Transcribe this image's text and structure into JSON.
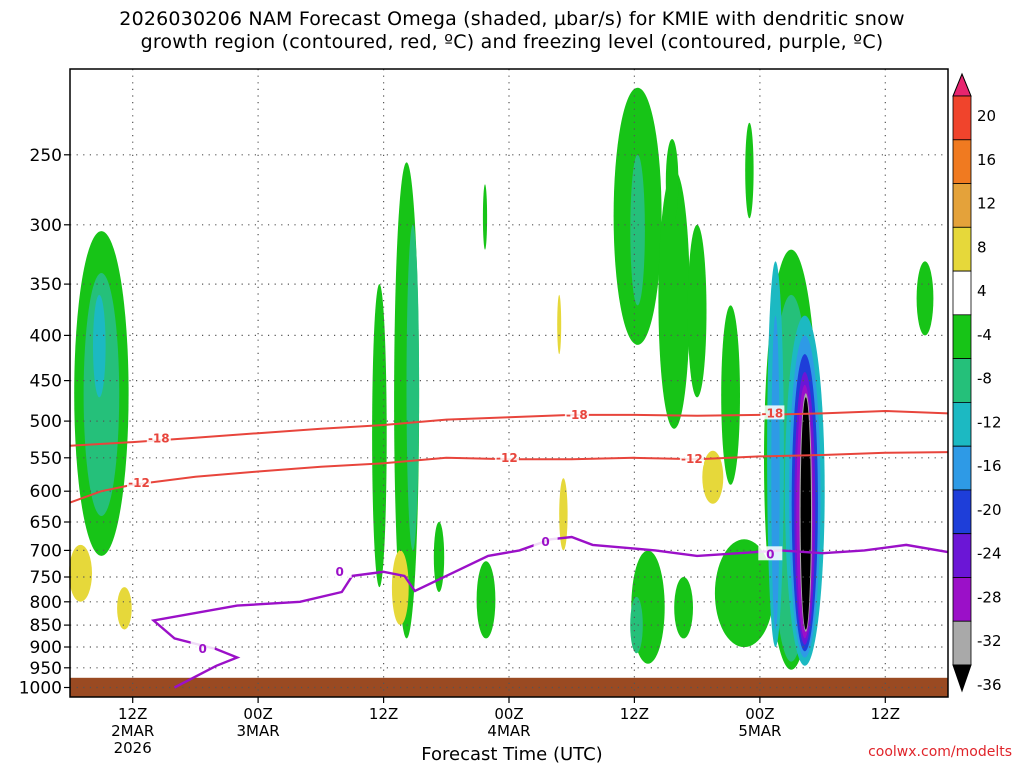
{
  "header": {
    "title_line1": "2026030206 NAM Forecast Omega (shaded, µbar/s) for KMIE with dendritic snow",
    "title_line2": "growth region (contoured, red, ºC) and freezing level (contoured, purple, ºC)"
  },
  "footer": {
    "credit": "coolwx.com/modelts"
  },
  "colors": {
    "axis": "#000000",
    "grid": "#555555",
    "dgz_contour": "#e8453c",
    "freezing_contour": "#9b10c8",
    "terrain": "#9a4a22"
  },
  "chart_data": {
    "type": "heatmap",
    "title": "2026030206 NAM Forecast Omega (shaded, µbar/s) for KMIE with dendritic snow growth region (contoured, red, ºC) and freezing level (contoured, purple, ºC)",
    "xlabel": "Forecast Time (UTC)",
    "ylabel": "",
    "y_scale": "log-pressure (inverted)",
    "yticks": [
      250,
      300,
      350,
      400,
      450,
      500,
      550,
      600,
      650,
      700,
      750,
      800,
      850,
      900,
      950,
      1000
    ],
    "ylim": [
      1025,
      200
    ],
    "x_range_hours": [
      0,
      84
    ],
    "x_ticks": [
      {
        "hour": 6,
        "lines": [
          "12Z",
          "2MAR",
          "2026"
        ]
      },
      {
        "hour": 18,
        "lines": [
          "00Z",
          "3MAR"
        ]
      },
      {
        "hour": 30,
        "lines": [
          "12Z"
        ]
      },
      {
        "hour": 42,
        "lines": [
          "00Z",
          "4MAR"
        ]
      },
      {
        "hour": 54,
        "lines": [
          "12Z"
        ]
      },
      {
        "hour": 66,
        "lines": [
          "00Z",
          "5MAR"
        ]
      },
      {
        "hour": 78,
        "lines": [
          "12Z"
        ]
      }
    ],
    "grid": true,
    "colorbar": {
      "labels": [
        20,
        16,
        12,
        8,
        4,
        -4,
        -8,
        -12,
        -16,
        -20,
        -24,
        -28,
        -32,
        -36
      ],
      "colors": [
        "#e8256f",
        "#f0442c",
        "#f07a20",
        "#e4a23a",
        "#e6d83a",
        "#ffffff",
        "#17c417",
        "#25c07a",
        "#1cb9c2",
        "#2e9ae6",
        "#1e3ed9",
        "#6b16d6",
        "#9b10c8",
        "#a9a9a9",
        "#000000"
      ]
    },
    "contour_labels": {
      "dgz": [
        "-18",
        "-12"
      ],
      "freezing": [
        "0"
      ]
    },
    "series": [
      {
        "name": "-18",
        "kind": "dgz",
        "points": [
          [
            0,
            533
          ],
          [
            6,
            528
          ],
          [
            12,
            522
          ],
          [
            18,
            516
          ],
          [
            24,
            510
          ],
          [
            30,
            505
          ],
          [
            36,
            498
          ],
          [
            42,
            495
          ],
          [
            48,
            492
          ],
          [
            54,
            492
          ],
          [
            60,
            493
          ],
          [
            66,
            492
          ],
          [
            72,
            490
          ],
          [
            78,
            487
          ],
          [
            84,
            490
          ]
        ]
      },
      {
        "name": "-12",
        "kind": "dgz",
        "points": [
          [
            0,
            618
          ],
          [
            3,
            600
          ],
          [
            6,
            590
          ],
          [
            12,
            578
          ],
          [
            18,
            570
          ],
          [
            24,
            563
          ],
          [
            30,
            558
          ],
          [
            36,
            550
          ],
          [
            42,
            552
          ],
          [
            48,
            552
          ],
          [
            54,
            550
          ],
          [
            60,
            552
          ],
          [
            66,
            548
          ],
          [
            72,
            546
          ],
          [
            78,
            543
          ],
          [
            84,
            542
          ]
        ]
      },
      {
        "name": "0",
        "kind": "freezing",
        "points": [
          [
            10,
            1000
          ],
          [
            14,
            945
          ],
          [
            16,
            925
          ],
          [
            14,
            905
          ],
          [
            10,
            880
          ],
          [
            8,
            840
          ],
          [
            16,
            808
          ],
          [
            22,
            800
          ],
          [
            26,
            780
          ],
          [
            27,
            748
          ],
          [
            30,
            740
          ],
          [
            32,
            748
          ],
          [
            33,
            778
          ],
          [
            36,
            748
          ],
          [
            40,
            710
          ],
          [
            43,
            700
          ],
          [
            46,
            680
          ],
          [
            48,
            676
          ],
          [
            50,
            690
          ],
          [
            56,
            700
          ],
          [
            60,
            710
          ],
          [
            64,
            705
          ],
          [
            68,
            700
          ],
          [
            72,
            705
          ],
          [
            76,
            700
          ],
          [
            80,
            690
          ],
          [
            84,
            703
          ]
        ]
      }
    ]
  }
}
